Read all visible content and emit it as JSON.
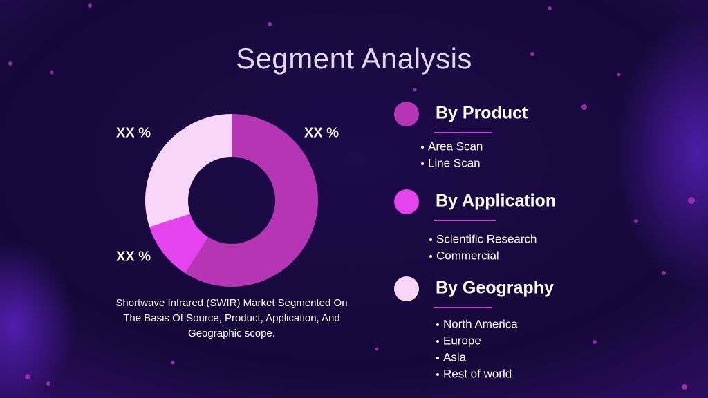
{
  "title": "Segment Analysis",
  "chart_data": {
    "type": "pie",
    "donut": true,
    "categories": [
      "By Product",
      "By Application",
      "By Geography"
    ],
    "values": [
      59,
      11,
      30
    ],
    "colors": [
      "#b535b5",
      "#e443ee",
      "#f7d6f7"
    ],
    "annotations": [
      "XX %",
      "XX %",
      "XX %"
    ],
    "caption": "Shortwave Infrared (SWIR) Market Segmented On The Basis Of Source, Product, Application, And Geographic scope."
  },
  "groups": [
    [
      "Area Scan",
      "Line Scan"
    ],
    [
      "Scientific Research",
      "Commercial"
    ],
    [
      "North America",
      "Europe",
      "Asia",
      "Rest of world"
    ]
  ]
}
